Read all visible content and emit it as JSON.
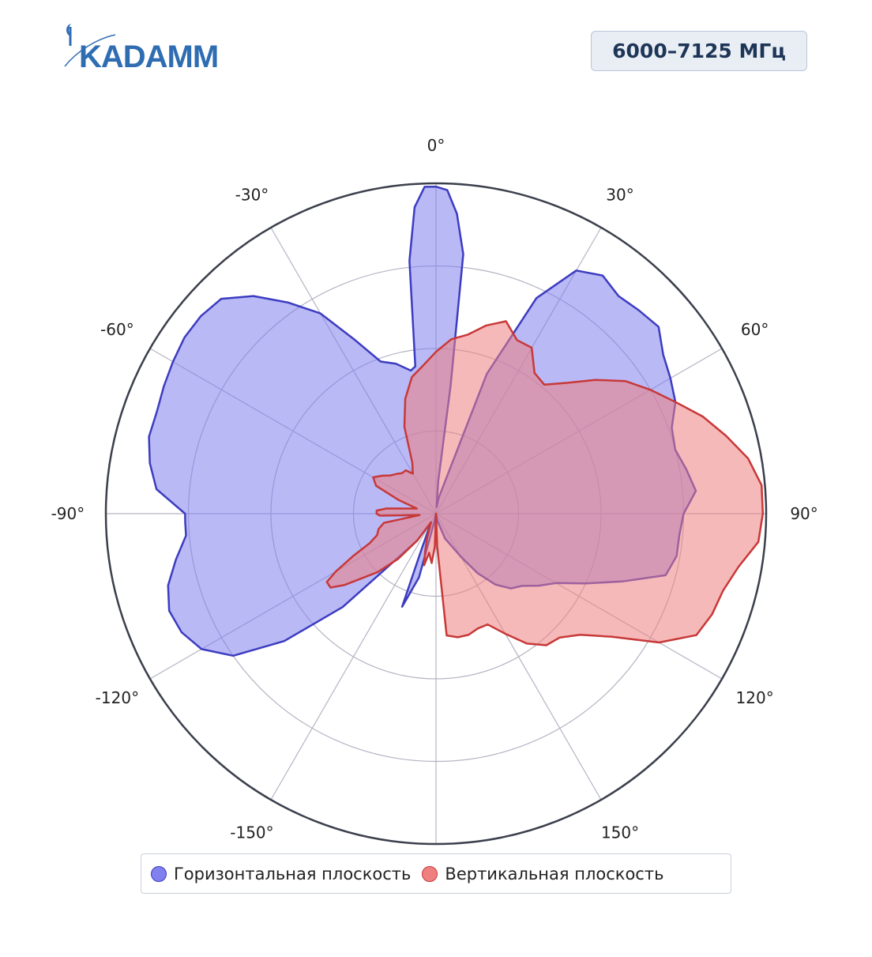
{
  "logo": {
    "text": "KADAMM",
    "color": "#2f6db3"
  },
  "badge": {
    "label": "6000–7125 МГц"
  },
  "chart_data": {
    "type": "polar",
    "angle_ticks": [
      "0°",
      "30°",
      "60°",
      "90°",
      "120°",
      "150°",
      "-150°",
      "-120°",
      "-90°",
      "-60°",
      "-30°"
    ],
    "angle_tick_values": [
      0,
      30,
      60,
      90,
      120,
      150,
      -150,
      -120,
      -90,
      -60,
      -30
    ],
    "radial_rings": 4,
    "grid": true,
    "legend_position": "bottom",
    "series": [
      {
        "name": "Горизонтальная плоскость",
        "color": "#8080ee",
        "line_color": "#3c3cc0",
        "points": [
          [
            -180,
            0.0
          ],
          [
            -170,
            0.02
          ],
          [
            -165,
            0.2
          ],
          [
            -162,
            0.25
          ],
          [
            -160,
            0.3
          ],
          [
            -158,
            0.12
          ],
          [
            -150,
            0.03
          ],
          [
            -145,
            0.1
          ],
          [
            -135,
            0.4
          ],
          [
            -130,
            0.6
          ],
          [
            -125,
            0.75
          ],
          [
            -120,
            0.82
          ],
          [
            -115,
            0.85
          ],
          [
            -110,
            0.86
          ],
          [
            -105,
            0.84
          ],
          [
            -100,
            0.8
          ],
          [
            -95,
            0.76
          ],
          [
            -92,
            0.76
          ],
          [
            -90,
            0.76
          ],
          [
            -85,
            0.85
          ],
          [
            -80,
            0.88
          ],
          [
            -75,
            0.9
          ],
          [
            -70,
            0.9
          ],
          [
            -65,
            0.91
          ],
          [
            -60,
            0.92
          ],
          [
            -55,
            0.93
          ],
          [
            -50,
            0.93
          ],
          [
            -45,
            0.92
          ],
          [
            -40,
            0.86
          ],
          [
            -35,
            0.78
          ],
          [
            -30,
            0.7
          ],
          [
            -25,
            0.58
          ],
          [
            -20,
            0.49
          ],
          [
            -15,
            0.47
          ],
          [
            -10,
            0.44
          ],
          [
            -8,
            0.45
          ],
          [
            -6,
            0.77
          ],
          [
            -4,
            0.93
          ],
          [
            -2,
            0.99
          ],
          [
            0,
            0.99
          ],
          [
            2,
            0.98
          ],
          [
            4,
            0.91
          ],
          [
            6,
            0.79
          ],
          [
            6.5,
            0.39
          ],
          [
            4,
            0.1
          ],
          [
            5,
            0.02
          ],
          [
            10,
            0.05
          ],
          [
            20,
            0.45
          ],
          [
            25,
            0.72
          ],
          [
            30,
            0.85
          ],
          [
            35,
            0.88
          ],
          [
            40,
            0.86
          ],
          [
            45,
            0.87
          ],
          [
            50,
            0.88
          ],
          [
            55,
            0.84
          ],
          [
            60,
            0.82
          ],
          [
            65,
            0.8
          ],
          [
            70,
            0.76
          ],
          [
            75,
            0.75
          ],
          [
            80,
            0.77
          ],
          [
            85,
            0.79
          ],
          [
            90,
            0.75
          ],
          [
            95,
            0.74
          ],
          [
            100,
            0.74
          ],
          [
            105,
            0.72
          ],
          [
            110,
            0.6
          ],
          [
            115,
            0.5
          ],
          [
            120,
            0.42
          ],
          [
            125,
            0.38
          ],
          [
            130,
            0.34
          ],
          [
            135,
            0.32
          ],
          [
            140,
            0.28
          ],
          [
            145,
            0.22
          ],
          [
            150,
            0.15
          ],
          [
            160,
            0.08
          ],
          [
            170,
            0.02
          ],
          [
            180,
            0.0
          ]
        ]
      },
      {
        "name": "Вертикальная плоскость",
        "color": "#ee8080",
        "line_color": "#c83838",
        "points": [
          [
            -180,
            0.0
          ],
          [
            -178,
            0.1
          ],
          [
            -175,
            0.15
          ],
          [
            -170,
            0.12
          ],
          [
            -167,
            0.16
          ],
          [
            -164,
            0.12
          ],
          [
            -160,
            0.08
          ],
          [
            -150,
            0.03
          ],
          [
            -145,
            0.1
          ],
          [
            -140,
            0.18
          ],
          [
            -135,
            0.25
          ],
          [
            -128,
            0.35
          ],
          [
            -125,
            0.39
          ],
          [
            -122,
            0.39
          ],
          [
            -120,
            0.35
          ],
          [
            -117,
            0.28
          ],
          [
            -114,
            0.22
          ],
          [
            -110,
            0.19
          ],
          [
            -105,
            0.18
          ],
          [
            -100,
            0.16
          ],
          [
            -95,
            0.05
          ],
          [
            -92,
            0.17
          ],
          [
            -90,
            0.18
          ],
          [
            -87,
            0.18
          ],
          [
            -84,
            0.15
          ],
          [
            -80,
            0.09
          ],
          [
            -75,
            0.06
          ],
          [
            -70,
            0.12
          ],
          [
            -65,
            0.2
          ],
          [
            -60,
            0.22
          ],
          [
            -55,
            0.2
          ],
          [
            -50,
            0.18
          ],
          [
            -45,
            0.17
          ],
          [
            -40,
            0.16
          ],
          [
            -35,
            0.16
          ],
          [
            -30,
            0.14
          ],
          [
            -25,
            0.17
          ],
          [
            -20,
            0.28
          ],
          [
            -15,
            0.36
          ],
          [
            -10,
            0.42
          ],
          [
            -5,
            0.45
          ],
          [
            0,
            0.49
          ],
          [
            5,
            0.53
          ],
          [
            10,
            0.55
          ],
          [
            15,
            0.59
          ],
          [
            20,
            0.62
          ],
          [
            25,
            0.58
          ],
          [
            30,
            0.58
          ],
          [
            35,
            0.52
          ],
          [
            40,
            0.51
          ],
          [
            45,
            0.56
          ],
          [
            50,
            0.63
          ],
          [
            55,
            0.7
          ],
          [
            60,
            0.75
          ],
          [
            65,
            0.8
          ],
          [
            70,
            0.86
          ],
          [
            75,
            0.91
          ],
          [
            80,
            0.96
          ],
          [
            85,
            0.99
          ],
          [
            90,
            0.99
          ],
          [
            95,
            0.98
          ],
          [
            100,
            0.93
          ],
          [
            105,
            0.9
          ],
          [
            110,
            0.89
          ],
          [
            115,
            0.87
          ],
          [
            120,
            0.78
          ],
          [
            125,
            0.65
          ],
          [
            130,
            0.57
          ],
          [
            135,
            0.53
          ],
          [
            140,
            0.52
          ],
          [
            145,
            0.48
          ],
          [
            150,
            0.42
          ],
          [
            155,
            0.37
          ],
          [
            160,
            0.37
          ],
          [
            165,
            0.38
          ],
          [
            170,
            0.38
          ],
          [
            175,
            0.37
          ],
          [
            178,
            0.1
          ],
          [
            180,
            0.0
          ]
        ]
      }
    ]
  }
}
